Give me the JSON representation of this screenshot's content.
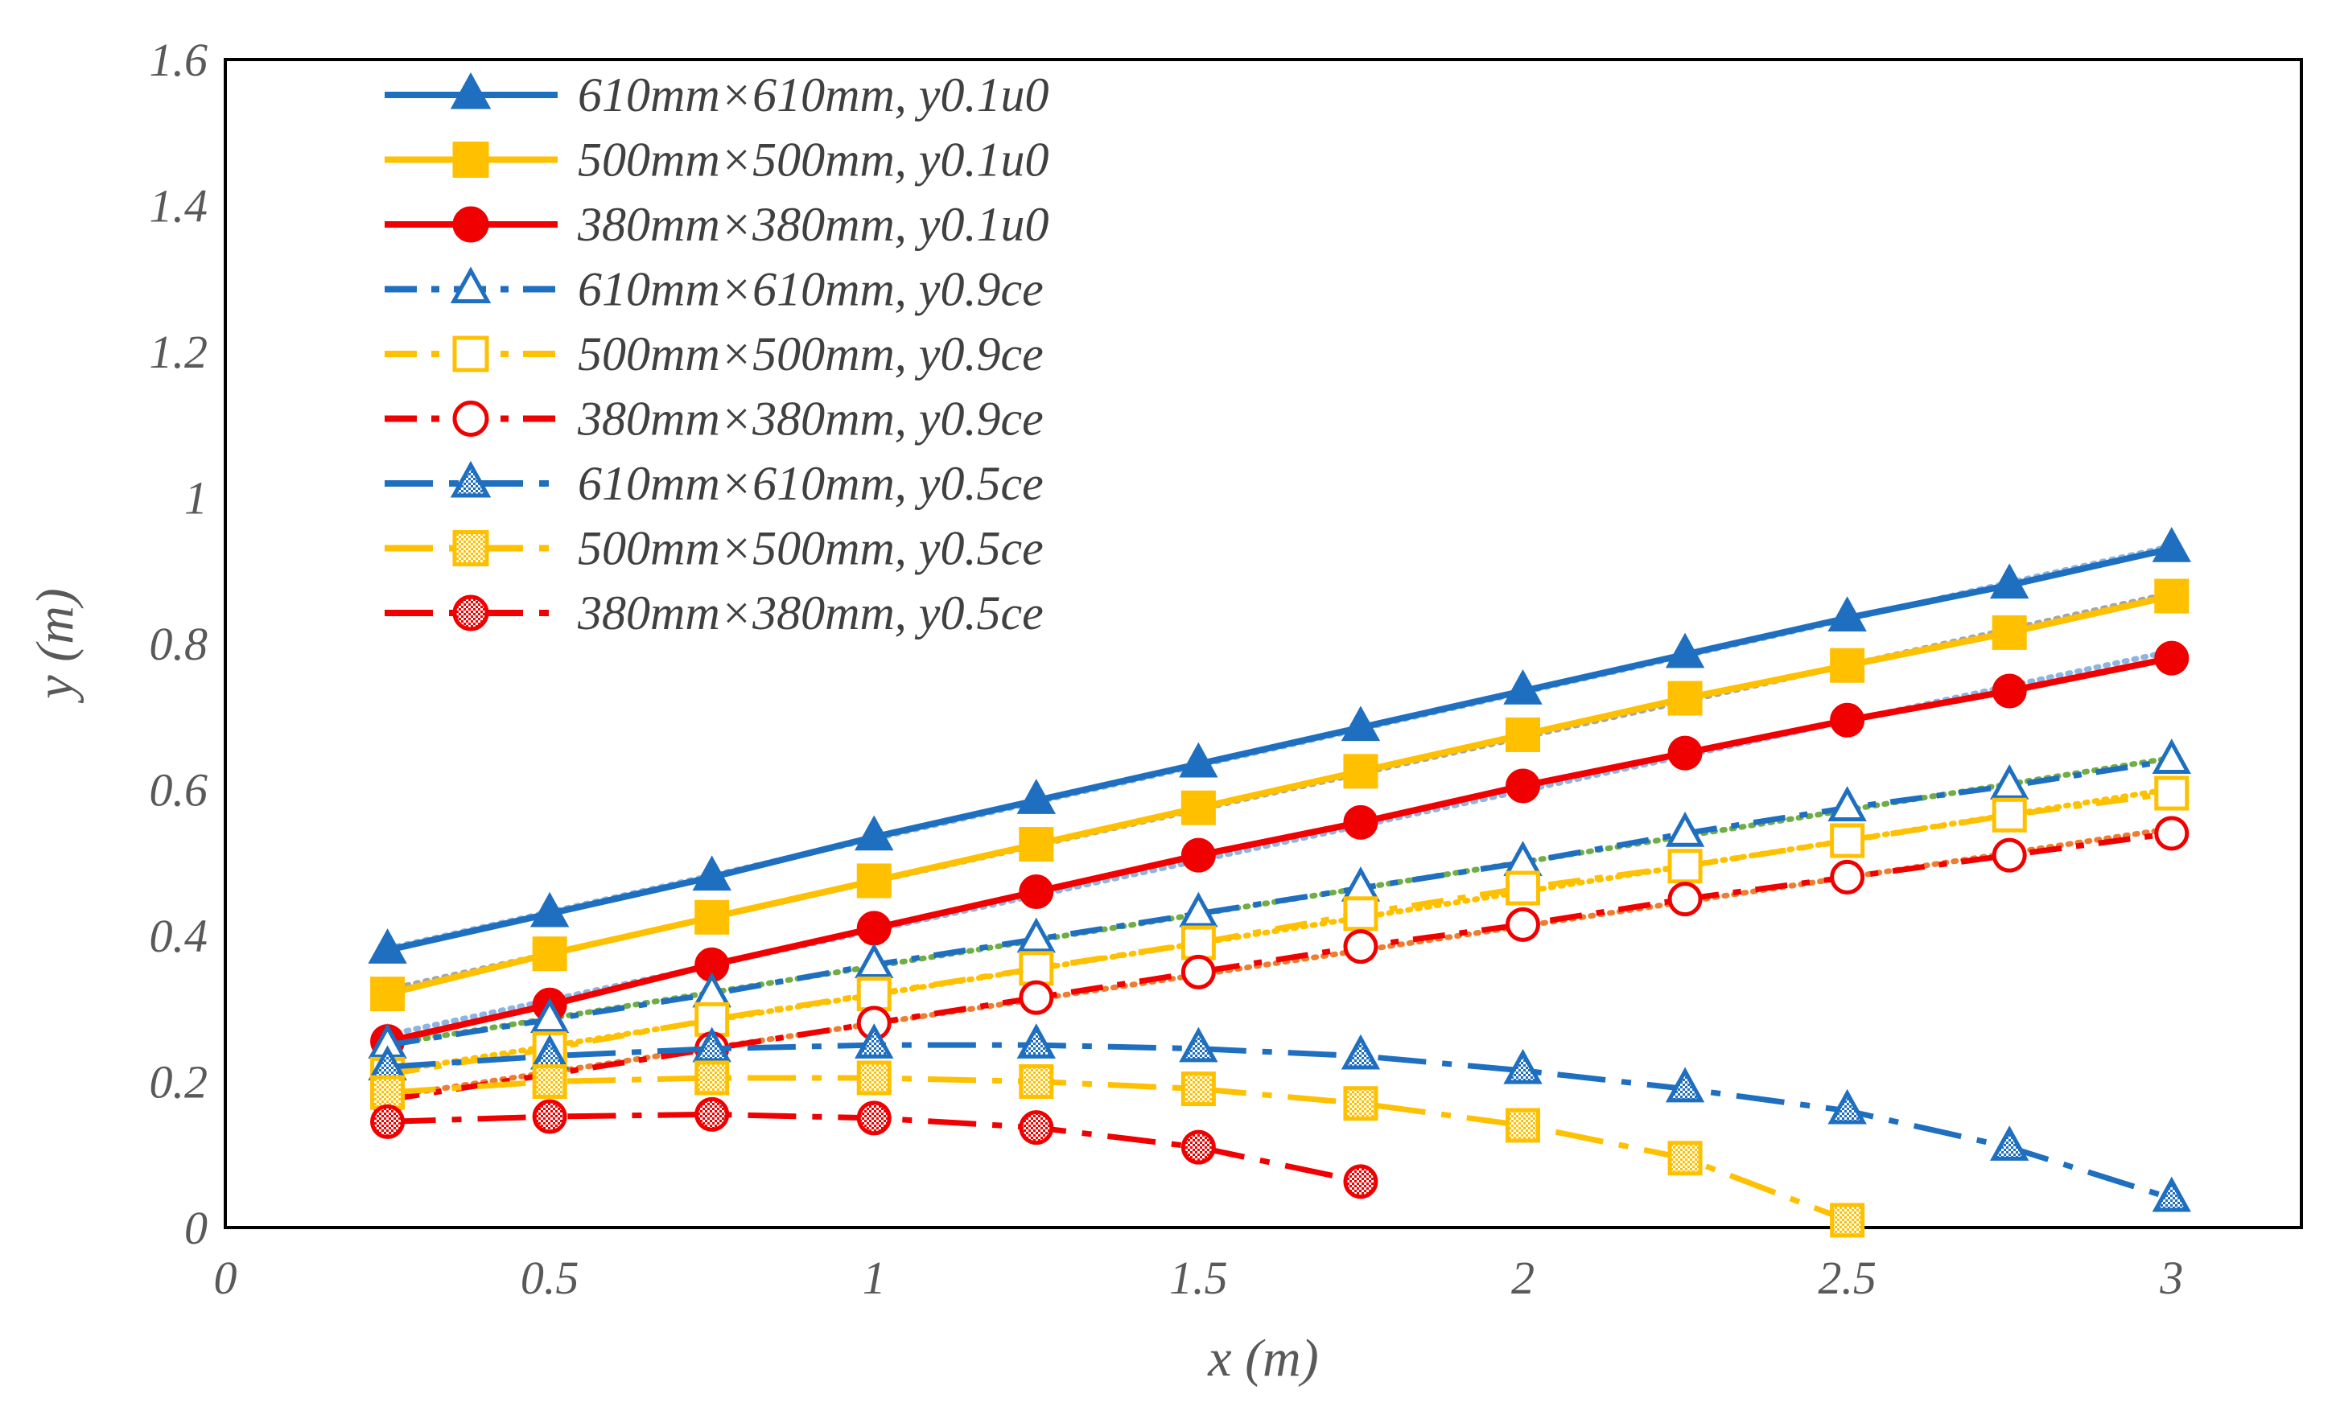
{
  "chart_data": {
    "type": "line",
    "title": "",
    "xlabel": "x (m)",
    "ylabel": "y (m)",
    "xlim": [
      0,
      3.2
    ],
    "ylim": [
      0,
      1.6
    ],
    "x_ticks": [
      "0",
      "0.5",
      "1",
      "1.5",
      "2",
      "2.5",
      "3"
    ],
    "y_ticks": [
      "0",
      "0.2",
      "0.4",
      "0.6",
      "0.8",
      "1",
      "1.2",
      "1.4",
      "1.6"
    ],
    "grid": false,
    "legend_position": "top-left",
    "colors": {
      "blue": "#1F6FC0",
      "yellow": "#FFC000",
      "red": "#F00000",
      "trend_blue": "#8DB4E2",
      "trend_gray": "#A6A6A6",
      "trend_green": "#70AD47",
      "trend_orange": "#ED7D31"
    },
    "x": [
      0.25,
      0.5,
      0.75,
      1.0,
      1.25,
      1.5,
      1.75,
      2.0,
      2.25,
      2.5,
      2.75,
      3.0
    ],
    "series": [
      {
        "name": "610mm×610mm, y0.1u0",
        "color": "#1F6FC0",
        "dash": "solid",
        "marker": "triangle",
        "fill": "solid",
        "trend_color": "#8DB4E2",
        "values": [
          0.38,
          0.43,
          0.48,
          0.535,
          0.585,
          0.635,
          0.685,
          0.735,
          0.785,
          0.835,
          0.88,
          0.93
        ]
      },
      {
        "name": "500mm×500mm, y0.1u0",
        "color": "#FFC000",
        "dash": "solid",
        "marker": "square",
        "fill": "solid",
        "trend_color": "#A6A6A6",
        "values": [
          0.32,
          0.375,
          0.425,
          0.475,
          0.525,
          0.575,
          0.625,
          0.675,
          0.725,
          0.77,
          0.815,
          0.865
        ]
      },
      {
        "name": "380mm×380mm, y0.1u0",
        "color": "#F00000",
        "dash": "solid",
        "marker": "circle",
        "fill": "solid",
        "trend_color": "#8DB4E2",
        "values": [
          0.255,
          0.305,
          0.36,
          0.41,
          0.46,
          0.51,
          0.555,
          0.605,
          0.65,
          0.695,
          0.735,
          0.78
        ]
      },
      {
        "name": "610mm×610mm, y0.9ce",
        "color": "#1F6FC0",
        "dash": "dashdot",
        "marker": "triangle",
        "fill": "open",
        "trend_color": "#70AD47",
        "values": [
          0.25,
          0.285,
          0.32,
          0.36,
          0.395,
          0.43,
          0.465,
          0.5,
          0.54,
          0.575,
          0.605,
          0.64
        ]
      },
      {
        "name": "500mm×500mm, y0.9ce",
        "color": "#FFC000",
        "dash": "dashdot",
        "marker": "square",
        "fill": "open",
        "trend_color": "#FFC000",
        "values": [
          0.21,
          0.245,
          0.285,
          0.32,
          0.355,
          0.39,
          0.43,
          0.465,
          0.495,
          0.53,
          0.565,
          0.595
        ]
      },
      {
        "name": "380mm×380mm, y0.9ce",
        "color": "#F00000",
        "dash": "dashdot",
        "marker": "circle",
        "fill": "open",
        "trend_color": "#ED7D31",
        "values": [
          0.175,
          0.21,
          0.245,
          0.28,
          0.315,
          0.35,
          0.385,
          0.415,
          0.45,
          0.48,
          0.51,
          0.54
        ]
      },
      {
        "name": "610mm×610mm, y0.5ce",
        "color": "#1F6FC0",
        "dash": "longdashdot",
        "marker": "triangle",
        "fill": "checker",
        "trend_color": null,
        "values": [
          0.22,
          0.235,
          0.245,
          0.25,
          0.25,
          0.245,
          0.235,
          0.215,
          0.19,
          0.16,
          0.11,
          0.04
        ]
      },
      {
        "name": "500mm×500mm, y0.5ce",
        "color": "#FFC000",
        "dash": "longdashdot",
        "marker": "square",
        "fill": "checker",
        "trend_color": null,
        "values": [
          0.185,
          0.2,
          0.205,
          0.205,
          0.2,
          0.19,
          0.17,
          0.14,
          0.095,
          0.01,
          null,
          null
        ]
      },
      {
        "name": "380mm×380mm, y0.5ce",
        "color": "#F00000",
        "dash": "longdashdot",
        "marker": "circle",
        "fill": "checker",
        "trend_color": null,
        "values": [
          0.145,
          0.152,
          0.155,
          0.15,
          0.137,
          0.11,
          0.063,
          null,
          null,
          null,
          null,
          null
        ]
      }
    ]
  }
}
